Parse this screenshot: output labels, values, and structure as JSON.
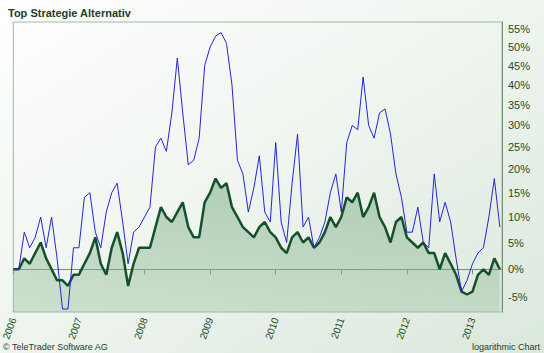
{
  "chart_data": {
    "type": "line",
    "title": "Top Strategie Alternativ",
    "annotations": [
      "© TeleTrader Software AG",
      "logarithmic Chart"
    ],
    "log": "y",
    "grid": false,
    "x": [
      2006,
      2006.083,
      2006.167,
      2006.25,
      2006.333,
      2006.417,
      2006.5,
      2006.583,
      2006.667,
      2006.75,
      2006.833,
      2006.917,
      2007,
      2007.083,
      2007.167,
      2007.25,
      2007.333,
      2007.417,
      2007.5,
      2007.583,
      2007.667,
      2007.75,
      2007.833,
      2007.917,
      2008,
      2008.083,
      2008.167,
      2008.25,
      2008.333,
      2008.417,
      2008.5,
      2008.583,
      2008.667,
      2008.75,
      2008.833,
      2008.917,
      2009,
      2009.083,
      2009.167,
      2009.25,
      2009.333,
      2009.417,
      2009.5,
      2009.583,
      2009.667,
      2009.75,
      2009.833,
      2009.917,
      2010,
      2010.083,
      2010.167,
      2010.25,
      2010.333,
      2010.417,
      2010.5,
      2010.583,
      2010.667,
      2010.75,
      2010.833,
      2010.917,
      2011,
      2011.083,
      2011.167,
      2011.25,
      2011.333,
      2011.417,
      2011.5,
      2011.583,
      2011.667,
      2011.75,
      2011.833,
      2011.917,
      2012,
      2012.083,
      2012.167,
      2012.25,
      2012.333,
      2012.417,
      2012.5,
      2012.583,
      2012.667,
      2012.75,
      2012.833,
      2012.917,
      2013,
      2013.083,
      2013.167,
      2013.25,
      2013.333,
      2013.417
    ],
    "series": [
      {
        "color": "#2424d8",
        "line_style": "solid",
        "values": [
          0,
          0,
          7,
          4,
          6,
          10,
          4,
          10,
          2,
          -7,
          -7,
          4,
          4,
          14,
          15,
          7,
          4,
          11,
          15,
          17,
          9,
          1,
          7,
          8,
          10,
          12,
          25,
          27,
          24,
          33,
          47,
          33,
          21,
          22,
          27,
          45,
          50,
          53,
          54,
          51,
          40,
          22,
          19,
          11,
          16,
          23,
          11,
          9,
          26,
          9,
          5,
          17,
          28,
          8,
          10,
          4,
          6,
          9,
          15,
          19,
          11,
          26,
          30,
          29,
          42,
          30,
          27,
          33,
          34,
          28,
          19,
          14,
          7,
          7,
          12,
          5,
          4,
          19,
          9,
          13,
          9,
          2,
          -4,
          -2,
          1,
          3,
          4,
          10,
          18,
          8
        ]
      },
      {
        "color": "#15502c",
        "line_style": "solid",
        "type": "area",
        "values": [
          0,
          0,
          2,
          1,
          3,
          5,
          2,
          0,
          -2,
          -2,
          -3,
          -1,
          -1,
          1,
          3,
          6,
          1,
          -1,
          4,
          7,
          3,
          -3,
          1,
          4,
          4,
          4,
          8,
          12,
          10,
          9,
          11,
          13,
          8,
          6,
          6,
          13,
          15,
          18,
          16,
          17,
          12,
          10,
          8,
          7,
          6,
          8,
          9,
          7,
          6,
          4,
          3,
          6,
          7,
          5,
          6,
          4,
          5,
          7,
          10,
          8,
          10,
          14,
          13,
          15,
          10,
          12,
          15,
          10,
          8,
          5,
          9,
          10,
          6,
          5,
          4,
          5,
          3,
          3,
          0,
          3,
          1,
          -1,
          -4,
          -4.5,
          -4,
          -1,
          0,
          -1,
          2,
          0
        ]
      }
    ],
    "xlim": [
      2006,
      2013.45
    ],
    "xticks": [
      2006,
      2007,
      2008,
      2009,
      2010,
      2011,
      2012,
      2013
    ],
    "ylim": [
      -7.5,
      57
    ],
    "yticks": [
      {
        "value": 55,
        "label": "55%"
      },
      {
        "value": 50,
        "label": "50%"
      },
      {
        "value": 45,
        "label": "45%"
      },
      {
        "value": 40,
        "label": "40%"
      },
      {
        "value": 35,
        "label": "35%"
      },
      {
        "value": 30,
        "label": "30%"
      },
      {
        "value": 25,
        "label": "25%"
      },
      {
        "value": 20,
        "label": "20%"
      },
      {
        "value": 15,
        "label": "15%"
      },
      {
        "value": 10,
        "label": "10%"
      },
      {
        "value": 5,
        "label": "5%"
      },
      {
        "value": 0,
        "label": "0%"
      },
      {
        "value": -5,
        "label": "-5%"
      }
    ]
  }
}
